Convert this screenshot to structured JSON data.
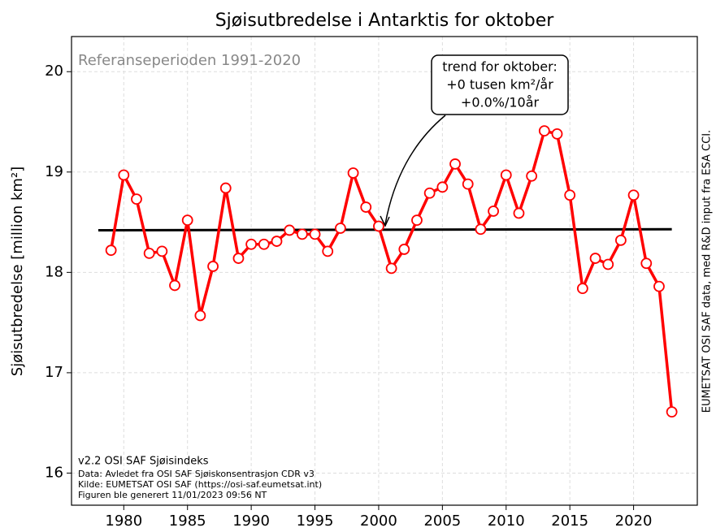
{
  "chart_data": {
    "type": "line",
    "title": "Sjøisutbredelse i Antarktis for oktober",
    "ylabel": "Sjøisutbredelse [million km²]",
    "x": [
      1979,
      1980,
      1981,
      1982,
      1983,
      1984,
      1985,
      1986,
      1987,
      1988,
      1989,
      1990,
      1991,
      1992,
      1993,
      1994,
      1995,
      1996,
      1997,
      1998,
      1999,
      2000,
      2001,
      2002,
      2003,
      2004,
      2005,
      2006,
      2007,
      2008,
      2009,
      2010,
      2011,
      2012,
      2013,
      2014,
      2015,
      2016,
      2017,
      2018,
      2019,
      2020,
      2021,
      2022,
      2023
    ],
    "series": [
      {
        "color": "#ff0000",
        "values": [
          18.22,
          18.97,
          18.73,
          18.19,
          18.21,
          17.87,
          18.52,
          17.57,
          18.06,
          18.84,
          18.14,
          18.28,
          18.28,
          18.31,
          18.42,
          18.38,
          18.38,
          18.21,
          18.44,
          18.99,
          18.65,
          18.46,
          18.04,
          18.23,
          18.52,
          18.79,
          18.85,
          19.08,
          18.88,
          18.43,
          18.61,
          18.97,
          18.59,
          18.96,
          19.41,
          19.38,
          18.77,
          17.84,
          18.14,
          18.08,
          18.32,
          18.77,
          18.09,
          17.86,
          16.61
        ]
      }
    ],
    "trend": {
      "color": "#000000",
      "x": [
        1978,
        2023
      ],
      "values": [
        18.42,
        18.43
      ]
    },
    "xlim": [
      1975.9,
      2025
    ],
    "ylim": [
      15.68,
      20.35
    ],
    "xticks": [
      1980,
      1985,
      1990,
      1995,
      2000,
      2005,
      2010,
      2015,
      2020
    ],
    "yticks": [
      16,
      17,
      18,
      19,
      20
    ],
    "grid": true,
    "reference_note": "Referanseperioden 1991-2020",
    "trend_box": [
      "trend for oktober:",
      "+0 tusen km²/år",
      "+0.0%/10år"
    ],
    "footnotes": [
      "v2.2 OSI SAF Sjøisindeks",
      "Data: Avledet fra OSI SAF Sjøiskonsentrasjon CDR v3",
      "Kilde: EUMETSAT OSI SAF (https://osi-saf.eumetsat.int)",
      "Figuren ble generert 11/01/2023 09:56 NT"
    ],
    "side_note": "EUMETSAT OSI SAF data, med R&D input fra ESA CCI."
  }
}
